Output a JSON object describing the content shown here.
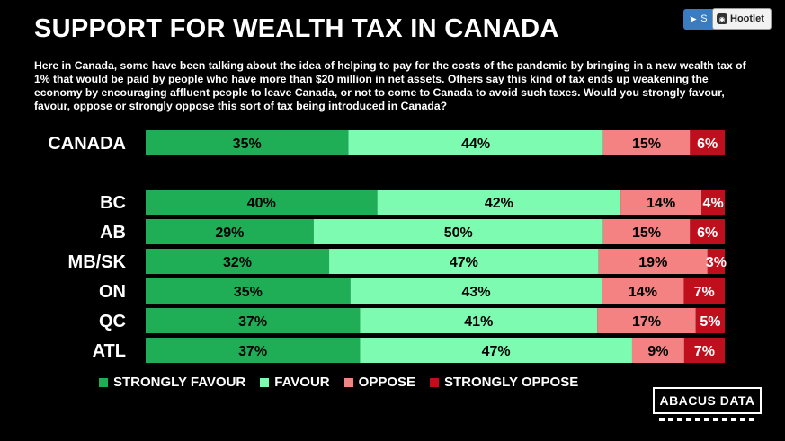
{
  "title": "SUPPORT FOR WEALTH TAX IN CANADA",
  "question": "Here in Canada, some have been talking about the idea of helping to pay for the costs of the pandemic by bringing in a new wealth tax of 1% that would be paid by people who have more than $20 million in net assets. Others say this kind of tax ends up weakening the economy by encouraging affluent people to leave Canada, or not to come to Canada to avoid such taxes. Would you strongly favour, favour, oppose or strongly oppose this sort of tax being introduced in Canada?",
  "toolbar": {
    "share_label": "S",
    "hootlet_label": "Hootlet"
  },
  "logo": "ABACUS DATA",
  "colors": {
    "strongly_favour": "#1fae56",
    "favour": "#7dfcb1",
    "oppose": "#f48282",
    "strongly_oppose": "#c00f1c"
  },
  "chart_data": {
    "type": "bar",
    "orientation": "horizontal",
    "stacked": true,
    "categories": [
      "CANADA",
      "BC",
      "AB",
      "MB/SK",
      "ON",
      "QC",
      "ATL"
    ],
    "series": [
      {
        "name": "STRONGLY FAVOUR",
        "values": [
          35,
          40,
          29,
          32,
          35,
          37,
          37
        ]
      },
      {
        "name": "FAVOUR",
        "values": [
          44,
          42,
          50,
          47,
          43,
          41,
          47
        ]
      },
      {
        "name": "OPPOSE",
        "values": [
          15,
          14,
          15,
          19,
          14,
          17,
          9
        ]
      },
      {
        "name": "STRONGLY OPPOSE",
        "values": [
          6,
          4,
          6,
          3,
          7,
          5,
          7
        ]
      }
    ],
    "data_label_suffix": "%",
    "legend_position": "bottom",
    "grid": false
  }
}
